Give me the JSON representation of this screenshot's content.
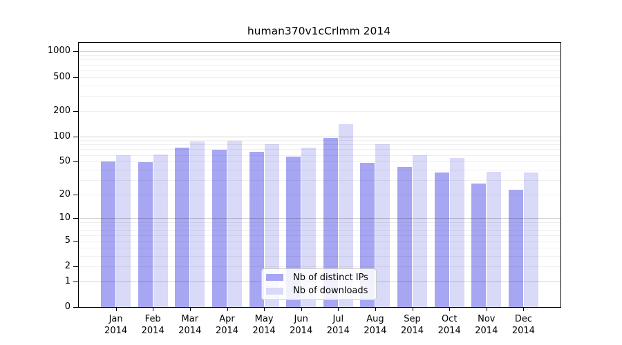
{
  "title": "human370v1cCrlmm 2014",
  "chart_data": {
    "type": "bar",
    "title": "human370v1cCrlmm 2014",
    "categories": [
      "Jan",
      "Feb",
      "Mar",
      "Apr",
      "May",
      "Jun",
      "Jul",
      "Aug",
      "Sep",
      "Oct",
      "Nov",
      "Dec"
    ],
    "x_tick_year": "2014",
    "series": [
      {
        "name": "Nb of distinct IPs",
        "key": "distinct-ips",
        "color": "#a6a6f2",
        "values": [
          50,
          49,
          73,
          69,
          65,
          57,
          95,
          48,
          43,
          37,
          27,
          23
        ]
      },
      {
        "name": "Nb of downloads",
        "key": "downloads",
        "color": "#d9d9f8",
        "values": [
          60,
          61,
          87,
          88,
          80,
          73,
          140,
          80,
          60,
          55,
          38,
          37
        ]
      }
    ],
    "y_ticks": [
      0,
      1,
      2,
      5,
      10,
      20,
      50,
      100,
      200,
      500,
      1000
    ],
    "y_scale": "log10(1+value)",
    "ylim": [
      0,
      1200
    ],
    "grid": true,
    "legend_position": "bottom-center"
  },
  "legend": {
    "items": [
      {
        "label": "Nb of distinct IPs",
        "swatch_color": "#a6a6f2"
      },
      {
        "label": "Nb of downloads",
        "swatch_color": "#d9d9f8"
      }
    ]
  }
}
